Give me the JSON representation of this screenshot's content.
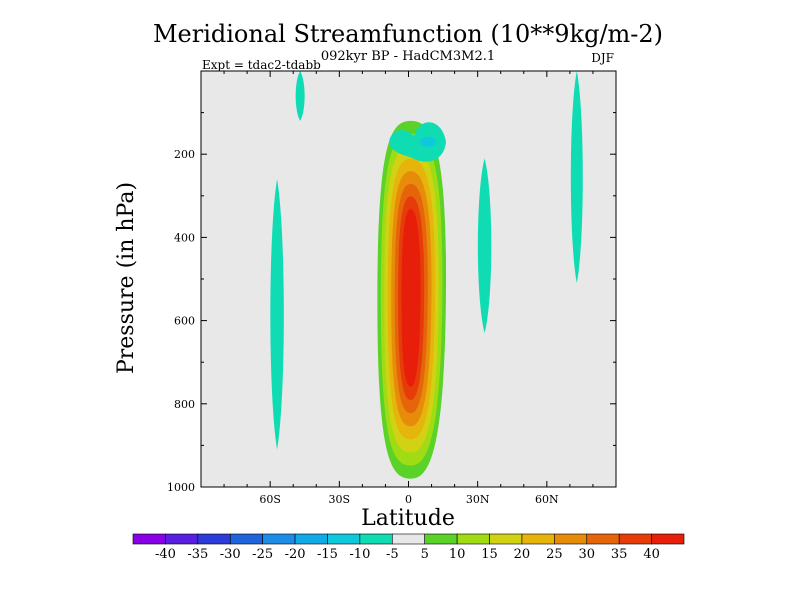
{
  "chart_data": {
    "type": "heatmap",
    "title": "Meridional Streamfunction (10**9kg/m-2)",
    "subtitle": "092kyr BP - HadCM3M2.1",
    "left_label": "Expt = tdac2-tdabb",
    "right_label": "DJF",
    "xlabel": "Latitude",
    "ylabel": "Pressure (in hPa)",
    "xlim": [
      -90,
      90
    ],
    "ylim": [
      1000,
      0
    ],
    "x_ticks": [
      {
        "value": -60,
        "label": "60S"
      },
      {
        "value": -30,
        "label": "30S"
      },
      {
        "value": 0,
        "label": "0"
      },
      {
        "value": 30,
        "label": "30N"
      },
      {
        "value": 60,
        "label": "60N"
      }
    ],
    "y_ticks": [
      {
        "value": 200,
        "label": "200"
      },
      {
        "value": 400,
        "label": "400"
      },
      {
        "value": 600,
        "label": "600"
      },
      {
        "value": 800,
        "label": "800"
      },
      {
        "value": 1000,
        "label": "1000"
      }
    ],
    "colorbar": {
      "labels": [
        "-40",
        "-35",
        "-30",
        "-25",
        "-20",
        "-15",
        "-10",
        "-5",
        "5",
        "10",
        "15",
        "20",
        "25",
        "30",
        "35",
        "40"
      ],
      "colors": [
        "#8a00e6",
        "#5a1ee0",
        "#2d3cd8",
        "#1e64dc",
        "#1e8ce6",
        "#10aae6",
        "#10c8dc",
        "#10dcb4",
        "#e8e8e8",
        "#5ad228",
        "#a0dc14",
        "#d2d214",
        "#e6b40a",
        "#e68c0a",
        "#e6640a",
        "#e63c0a",
        "#e61e0a"
      ]
    },
    "field": {
      "background_value_range": [
        -5,
        5
      ],
      "features": [
        {
          "name": "tropical-cell",
          "center_lat": 0,
          "center_p": 560,
          "peak_value": 40,
          "lat_halfwidth": 12,
          "p_top": 120,
          "p_bottom": 980
        },
        {
          "name": "upper-negative-blob",
          "center_lat": 5,
          "center_p": 180,
          "peak_value": -10
        },
        {
          "name": "southern-negative-band",
          "center_lat": -57,
          "p_top": 260,
          "p_bottom": 910,
          "peak_value": -5
        },
        {
          "name": "northern-negative-band",
          "center_lat": 33,
          "p_top": 210,
          "p_bottom": 630,
          "peak_value": -5
        },
        {
          "name": "polar-negative-strip-south",
          "center_lat": -47,
          "p_top": 0,
          "p_bottom": 120,
          "peak_value": -5
        },
        {
          "name": "polar-negative-strip-north",
          "center_lat": 73,
          "p_top": 0,
          "p_bottom": 510,
          "peak_value": -5
        }
      ]
    }
  }
}
